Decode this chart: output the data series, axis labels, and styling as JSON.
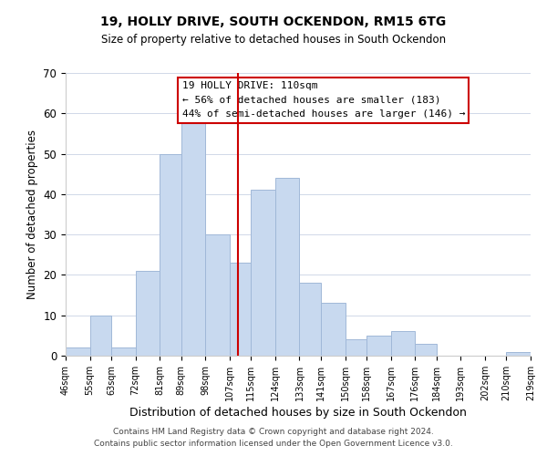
{
  "title": "19, HOLLY DRIVE, SOUTH OCKENDON, RM15 6TG",
  "subtitle": "Size of property relative to detached houses in South Ockendon",
  "xlabel": "Distribution of detached houses by size in South Ockendon",
  "ylabel": "Number of detached properties",
  "footer1": "Contains HM Land Registry data © Crown copyright and database right 2024.",
  "footer2": "Contains public sector information licensed under the Open Government Licence v3.0.",
  "bin_labels": [
    "46sqm",
    "55sqm",
    "63sqm",
    "72sqm",
    "81sqm",
    "89sqm",
    "98sqm",
    "107sqm",
    "115sqm",
    "124sqm",
    "133sqm",
    "141sqm",
    "150sqm",
    "158sqm",
    "167sqm",
    "176sqm",
    "184sqm",
    "193sqm",
    "202sqm",
    "210sqm",
    "219sqm"
  ],
  "bar_heights": [
    2,
    10,
    2,
    21,
    50,
    58,
    30,
    23,
    41,
    44,
    18,
    13,
    4,
    5,
    6,
    3,
    0,
    0,
    0,
    1
  ],
  "bar_color": "#c8d9ef",
  "bar_edge_color": "#a0b8d8",
  "vline_x": 110,
  "vline_color": "#cc0000",
  "ylim": [
    0,
    70
  ],
  "annotation_title": "19 HOLLY DRIVE: 110sqm",
  "annotation_line1": "← 56% of detached houses are smaller (183)",
  "annotation_line2": "44% of semi-detached houses are larger (146) →",
  "annotation_box_color": "#ffffff",
  "annotation_box_edge": "#cc0000",
  "bin_edges": [
    46,
    55,
    63,
    72,
    81,
    89,
    98,
    107,
    115,
    124,
    133,
    141,
    150,
    158,
    167,
    176,
    184,
    193,
    202,
    210,
    219
  ]
}
